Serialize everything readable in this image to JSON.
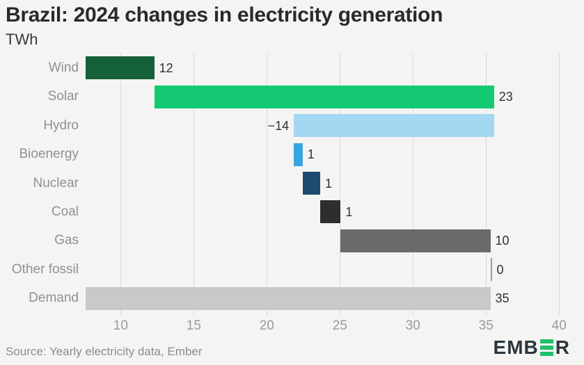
{
  "page": {
    "background": "#f4f4f2"
  },
  "chart_data": {
    "type": "bar",
    "subtype": "horizontal-waterfall",
    "title": "Brazil: 2024 changes in electricity generation",
    "unit_label": "TWh",
    "categories": [
      "Wind",
      "Solar",
      "Hydro",
      "Bioenergy",
      "Nuclear",
      "Coal",
      "Gas",
      "Other fossil",
      "Demand"
    ],
    "values": [
      12,
      23,
      -14,
      1,
      1,
      1,
      10,
      0,
      35
    ],
    "bars": [
      {
        "label": "Wind",
        "value": 12,
        "value_label": "12",
        "cum_start": 0,
        "cum_end": 12.3,
        "color": "#146038",
        "label_side": "right"
      },
      {
        "label": "Solar",
        "value": 23,
        "value_label": "23",
        "cum_start": 12.3,
        "cum_end": 35.55,
        "color": "#13c972",
        "label_side": "right"
      },
      {
        "label": "Hydro",
        "value": -14,
        "value_label": "−14",
        "cum_start": 35.55,
        "cum_end": 21.85,
        "color": "#a3d7f2",
        "label_side": "left"
      },
      {
        "label": "Bioenergy",
        "value": 1,
        "value_label": "1",
        "cum_start": 21.85,
        "cum_end": 22.45,
        "color": "#39a5de",
        "label_side": "right"
      },
      {
        "label": "Nuclear",
        "value": 1,
        "value_label": "1",
        "cum_start": 22.45,
        "cum_end": 23.65,
        "color": "#1f4a70",
        "label_side": "right"
      },
      {
        "label": "Coal",
        "value": 1,
        "value_label": "1",
        "cum_start": 23.65,
        "cum_end": 25.05,
        "color": "#2e2e30",
        "label_side": "right"
      },
      {
        "label": "Gas",
        "value": 10,
        "value_label": "10",
        "cum_start": 25.05,
        "cum_end": 35.3,
        "color": "#6a6a6a",
        "label_side": "right"
      },
      {
        "label": "Other fossil",
        "value": 0,
        "value_label": "0",
        "cum_start": 35.3,
        "cum_end": 35.3,
        "color": "#9c9c9c",
        "label_side": "right"
      },
      {
        "label": "Demand",
        "value": 35,
        "value_label": "35",
        "cum_start": 0,
        "cum_end": 35.3,
        "color": "#c9c9c9",
        "label_side": "right"
      }
    ],
    "xticks": [
      10,
      15,
      20,
      25,
      30,
      35,
      40
    ],
    "xlim": [
      7.6,
      40.8
    ],
    "grid": "vertical",
    "legend": false,
    "colors": {
      "grid": "#d8d8d6",
      "tick_label": "#9a9a9a",
      "category_label": "#909090",
      "value_label": "#2f2f2f"
    }
  },
  "footer": {
    "source": "Source: Yearly electricity data, Ember",
    "logo": {
      "prefix": "EMB",
      "suffix": "R",
      "accent": "#1fc06a",
      "text_color": "#2c363c"
    }
  }
}
